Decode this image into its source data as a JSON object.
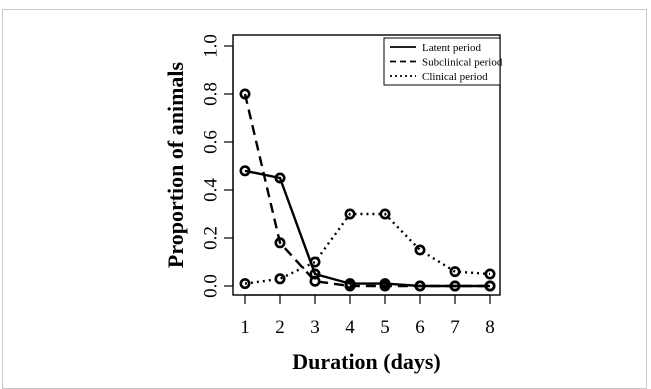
{
  "chart_data": {
    "type": "line",
    "title": "",
    "xlabel": "Duration (days)",
    "ylabel": "Proportion of animals",
    "x": [
      1,
      2,
      3,
      4,
      5,
      6,
      7,
      8
    ],
    "xlim": [
      1,
      8
    ],
    "ylim": [
      0,
      1.0
    ],
    "x_ticks": [
      "1",
      "2",
      "3",
      "4",
      "5",
      "6",
      "7",
      "8"
    ],
    "y_ticks": [
      "0.0",
      "0.2",
      "0.4",
      "0.6",
      "0.8",
      "1.0"
    ],
    "y_tick_values": [
      0,
      0.2,
      0.4,
      0.6,
      0.8,
      1.0
    ],
    "grid": false,
    "legend_position": "top-right",
    "series": [
      {
        "name": "Latent period",
        "line_style": "solid",
        "color": "#000000",
        "values": [
          0.48,
          0.45,
          0.05,
          0.01,
          0.01,
          0.0,
          0.0,
          0.0
        ]
      },
      {
        "name": "Subclinical period",
        "line_style": "dashed",
        "color": "#000000",
        "values": [
          0.8,
          0.18,
          0.02,
          0.0,
          0.0,
          0.0,
          0.0,
          0.0
        ]
      },
      {
        "name": "Clinical period",
        "line_style": "dotted",
        "color": "#000000",
        "values": [
          0.01,
          0.03,
          0.1,
          0.3,
          0.3,
          0.15,
          0.06,
          0.05
        ]
      }
    ]
  }
}
